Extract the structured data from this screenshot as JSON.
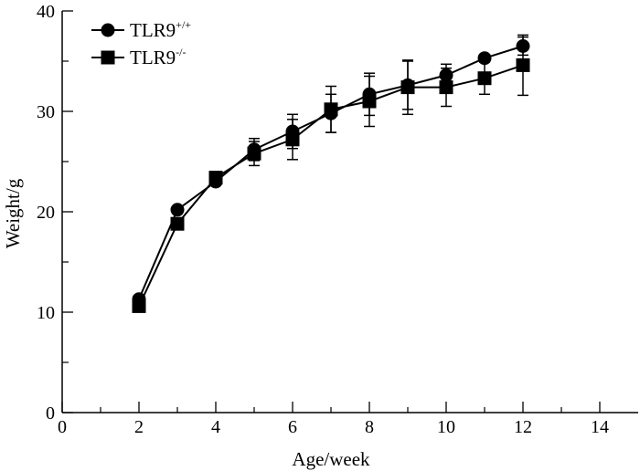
{
  "chart_data": {
    "type": "line",
    "xlabel": "Age/week",
    "ylabel": "Weight/g",
    "xlim": [
      0,
      15
    ],
    "ylim": [
      0,
      40
    ],
    "x_ticks": [
      0,
      2,
      4,
      6,
      8,
      10,
      12,
      14
    ],
    "y_ticks": [
      0,
      10,
      20,
      30,
      40
    ],
    "x_minor_ticks": [
      1,
      3,
      5,
      7,
      9,
      11,
      13
    ],
    "y_minor_ticks": [
      5,
      15,
      25,
      35
    ],
    "grid": false,
    "legend_position": "top-left",
    "series": [
      {
        "name": "TLR9",
        "superscript": "+/+",
        "marker": "circle",
        "x": [
          2,
          3,
          4,
          5,
          6,
          7,
          8,
          9,
          10,
          11,
          12
        ],
        "y": [
          11.3,
          20.2,
          23.0,
          26.2,
          28.0,
          29.8,
          31.7,
          32.6,
          33.6,
          35.3,
          36.5
        ],
        "err": [
          0,
          0,
          0,
          1.1,
          1.7,
          1.9,
          2.1,
          2.4,
          1.1,
          0,
          0.9
        ]
      },
      {
        "name": "TLR9",
        "superscript": "-/-",
        "marker": "square",
        "x": [
          2,
          3,
          4,
          5,
          6,
          7,
          8,
          9,
          10,
          11,
          12
        ],
        "y": [
          10.6,
          18.8,
          23.4,
          25.8,
          27.2,
          30.2,
          31.0,
          32.4,
          32.4,
          33.3,
          34.6
        ],
        "err": [
          0,
          0,
          0,
          1.2,
          2.0,
          2.3,
          2.5,
          2.7,
          1.9,
          1.6,
          3.0
        ]
      }
    ]
  }
}
